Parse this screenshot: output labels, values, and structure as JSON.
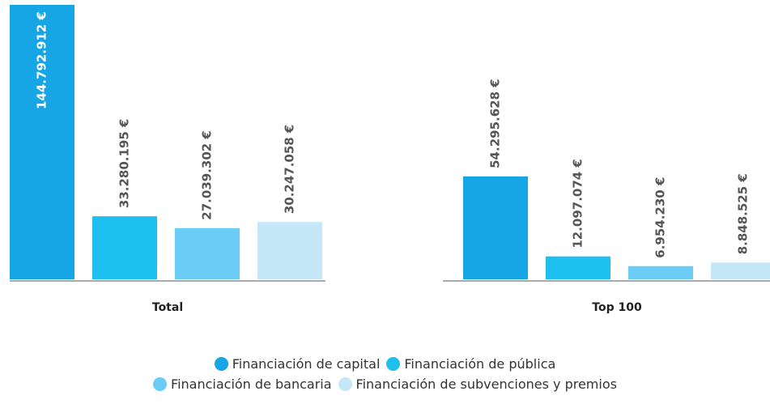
{
  "chart_data": {
    "type": "bar",
    "categories": [
      "Total",
      "Top 100"
    ],
    "series": [
      {
        "name": "Financiación de capital",
        "color": "#16a6e6",
        "values": [
          144792912,
          54295628
        ],
        "value_labels": [
          "144.792.912 €",
          "54.295.628 €"
        ]
      },
      {
        "name": "Financiación de pública",
        "color": "#1ec0ef",
        "values": [
          33280195,
          12097074
        ],
        "value_labels": [
          "33.280.195 €",
          "12.097.074 €"
        ]
      },
      {
        "name": "Financiación de bancaria",
        "color": "#6bcdf5",
        "values": [
          27039302,
          6954230
        ],
        "value_labels": [
          "27.039.302 €",
          "6.954.230 €"
        ]
      },
      {
        "name": "Financiación de subvenciones y premios",
        "color": "#c5e8f8",
        "values": [
          30247058,
          8848525
        ],
        "value_labels": [
          "30.247.058 €",
          "8.848.525 €"
        ]
      }
    ],
    "legend": "bottom"
  }
}
